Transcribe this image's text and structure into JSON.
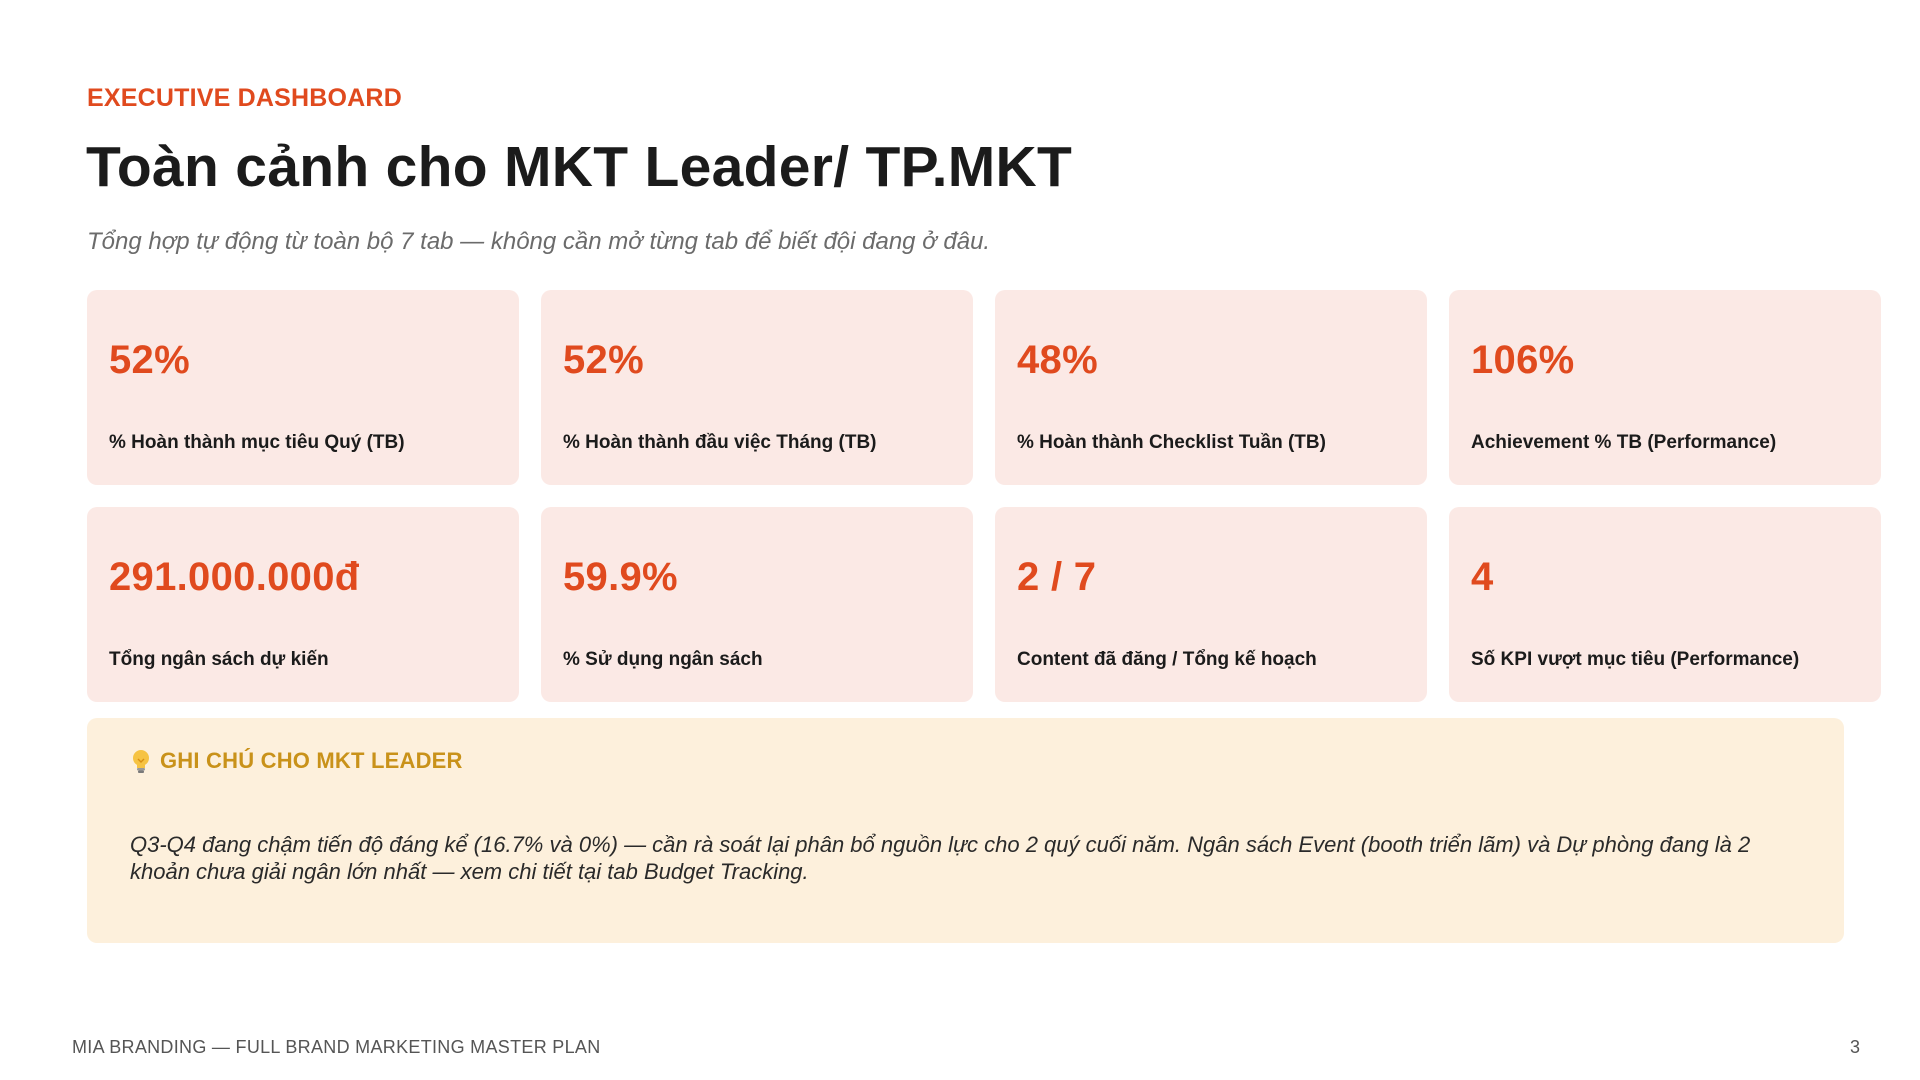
{
  "header": {
    "eyebrow": "EXECUTIVE DASHBOARD",
    "title": "Toàn cảnh cho MKT Leader/ TP.MKT",
    "subtitle": "Tổng hợp tự động từ toàn bộ 7 tab — không cần mở từng tab để biết đội đang ở đâu."
  },
  "kpis": [
    {
      "value": "52%",
      "label": "% Hoàn thành mục tiêu Quý (TB)"
    },
    {
      "value": "52%",
      "label": "% Hoàn thành đầu việc Tháng (TB)"
    },
    {
      "value": "48%",
      "label": "% Hoàn thành Checklist Tuần (TB)"
    },
    {
      "value": "106%",
      "label": "Achievement % TB (Performance)"
    },
    {
      "value": "291.000.000đ",
      "label": "Tổng ngân sách dự kiến"
    },
    {
      "value": "59.9%",
      "label": "% Sử dụng ngân sách"
    },
    {
      "value": "2 / 7",
      "label": "Content đã đăng / Tổng kế hoạch"
    },
    {
      "value": "4",
      "label": "Số KPI vượt mục tiêu (Performance)"
    }
  ],
  "note": {
    "icon": "lightbulb-icon",
    "title": "GHI CHÚ CHO MKT LEADER",
    "body": "Q3-Q4 đang chậm tiến độ đáng kể (16.7% và 0%) — cần rà soát lại phân bổ nguồn lực cho 2 quý cuối năm. Ngân sách Event (booth triển lãm) và Dự phòng đang là 2 khoản chưa giải ngân lớn nhất — xem chi tiết tại tab Budget Tracking."
  },
  "footer": {
    "left": "MIA BRANDING — FULL BRAND MARKETING MASTER PLAN",
    "page_number": "3"
  },
  "colors": {
    "accent": "#e04a1e",
    "card_bg": "#fbe9e5",
    "note_bg": "#fdf0dc",
    "note_title": "#c9921a"
  }
}
